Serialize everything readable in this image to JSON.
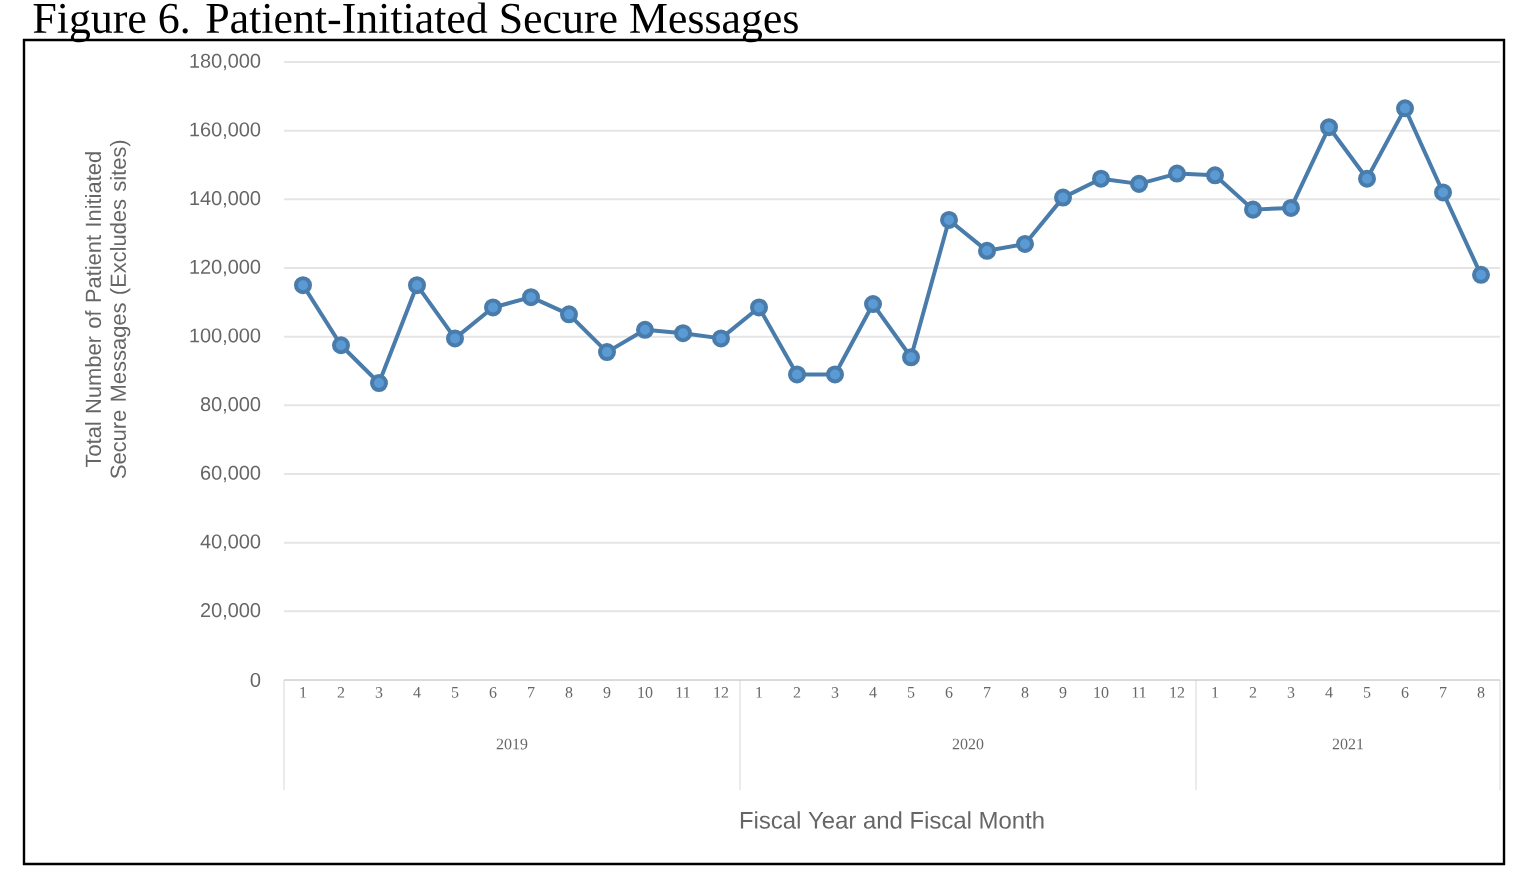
{
  "chart_data": {
    "type": "line",
    "title": "Figure 6. Patient-Initiated Secure Messages",
    "xlabel": "Fiscal Year and Fiscal Month",
    "ylabel": "Total Number of Patient Initiated Secure Messages (Excludes sites)",
    "categories": [
      "1",
      "2",
      "3",
      "4",
      "5",
      "6",
      "7",
      "8",
      "9",
      "10",
      "11",
      "12",
      "1",
      "2",
      "3",
      "4",
      "5",
      "6",
      "7",
      "8",
      "9",
      "10",
      "11",
      "12",
      "1",
      "2",
      "3",
      "4",
      "5",
      "6",
      "7",
      "8"
    ],
    "annotations": [
      "2019",
      "2020",
      "2021"
    ],
    "series": [
      {
        "color": "#5b9bd5",
        "values": [
          115000,
          97500,
          86500,
          115000,
          99500,
          108500,
          111500,
          106500,
          95500,
          102000,
          101000,
          99500,
          108500,
          89000,
          89000,
          109500,
          94000,
          134000,
          125000,
          127000,
          140500,
          146000,
          144500,
          147500,
          147000,
          137000,
          137500,
          161000,
          146000,
          166500,
          142000,
          118000
        ]
      }
    ],
    "ylim": [
      0,
      180000
    ],
    "yticks": [
      {
        "value": 0,
        "label": "0"
      },
      {
        "value": 20000,
        "label": "20,000"
      },
      {
        "value": 40000,
        "label": "40,000"
      },
      {
        "value": 60000,
        "label": "60,000"
      },
      {
        "value": 80000,
        "label": "80,000"
      },
      {
        "value": 100000,
        "label": "100,000"
      },
      {
        "value": 120000,
        "label": "120,000"
      },
      {
        "value": 140000,
        "label": "140,000"
      },
      {
        "value": 160000,
        "label": "160,000"
      },
      {
        "value": 180000,
        "label": "180,000"
      }
    ],
    "grid": "y",
    "marker": "circle",
    "line_style": "solid"
  }
}
